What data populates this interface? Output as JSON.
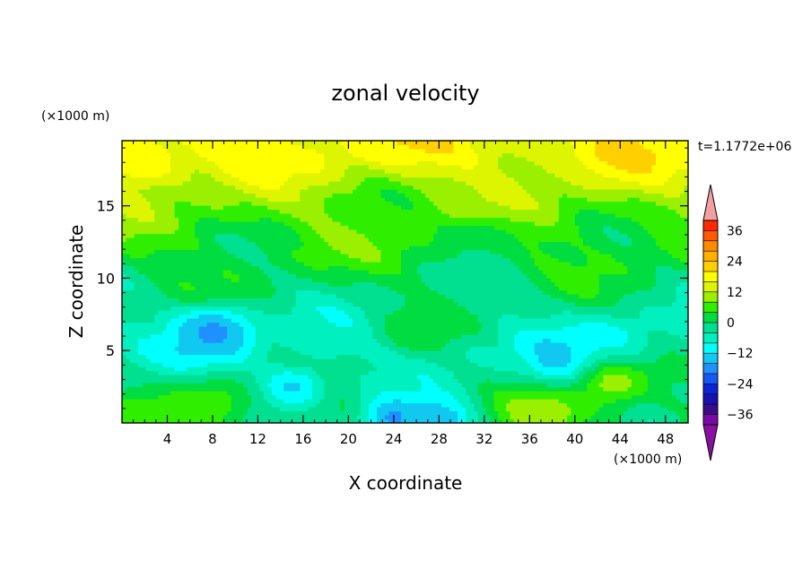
{
  "chart_data": {
    "type": "heatmap",
    "title": "zonal velocity",
    "xlabel": "X coordinate",
    "ylabel": "Z coordinate",
    "x_units": "(×1000 m)",
    "y_units": "(×1000 m)",
    "time_label": "t=1.1772e+06",
    "xlim": [
      0,
      50
    ],
    "ylim": [
      0,
      19.5
    ],
    "x_ticks": [
      4,
      8,
      12,
      16,
      20,
      24,
      28,
      32,
      36,
      40,
      44,
      48
    ],
    "y_ticks": [
      5,
      10,
      15
    ],
    "grid": false,
    "colorbar": {
      "levels": [
        -40,
        -36,
        -32,
        -28,
        -24,
        -20,
        -16,
        -12,
        -8,
        -4,
        0,
        4,
        8,
        12,
        16,
        20,
        24,
        28,
        32,
        36,
        40
      ],
      "colors": [
        "#7a0aa8",
        "#3a0a8a",
        "#1810b0",
        "#0a24d8",
        "#1658f0",
        "#1e90ff",
        "#10c8f0",
        "#00ffff",
        "#00f0c0",
        "#00e090",
        "#00dd40",
        "#30ee00",
        "#9af000",
        "#ddf500",
        "#ffff00",
        "#ffd000",
        "#ffb000",
        "#ff8a00",
        "#ff5a00",
        "#ff2800",
        "#f00000"
      ],
      "under_color": "#8a10a0",
      "over_color": "#f4a0a0",
      "tick_labels": [
        "36",
        "24",
        "12",
        "0",
        "−12",
        "−24",
        "−36"
      ],
      "tick_values": [
        36,
        24,
        12,
        0,
        -12,
        -24,
        -36
      ]
    },
    "field": {
      "description_bands_top_to_bottom": [
        {
          "z_range": [
            17.5,
            19.5
          ],
          "u": 17
        },
        {
          "z_range": [
            14.5,
            17.5
          ],
          "u": 10
        },
        {
          "z_range": [
            11,
            14.5
          ],
          "u": 5
        },
        {
          "z_range": [
            8,
            11
          ],
          "u": 0
        },
        {
          "z_range": [
            2,
            8
          ],
          "u": -6
        },
        {
          "z_range": [
            0,
            2
          ],
          "u": 2
        }
      ],
      "features": [
        {
          "x": 44,
          "z": 18.8,
          "u": 21
        },
        {
          "x": 2,
          "z": 18,
          "u": 20
        },
        {
          "x": 8,
          "z": 6,
          "u": -12
        },
        {
          "x": 8,
          "z": 6.3,
          "u": -17
        },
        {
          "x": 39,
          "z": 4.3,
          "u": -15
        },
        {
          "x": 43,
          "z": 5.8,
          "u": -10
        },
        {
          "x": 43.5,
          "z": 2.8,
          "u": 10
        },
        {
          "x": 37,
          "z": 0.5,
          "u": 12
        },
        {
          "x": 24,
          "z": 0.4,
          "u": -17
        },
        {
          "x": 28,
          "z": 0.3,
          "u": -16
        },
        {
          "x": 15,
          "z": 2.5,
          "u": -13
        },
        {
          "x": 26,
          "z": 6.3,
          "u": 4
        },
        {
          "x": 32,
          "z": 12.5,
          "u": 0
        },
        {
          "x": 8,
          "z": 1.5,
          "u": 6
        }
      ]
    }
  }
}
